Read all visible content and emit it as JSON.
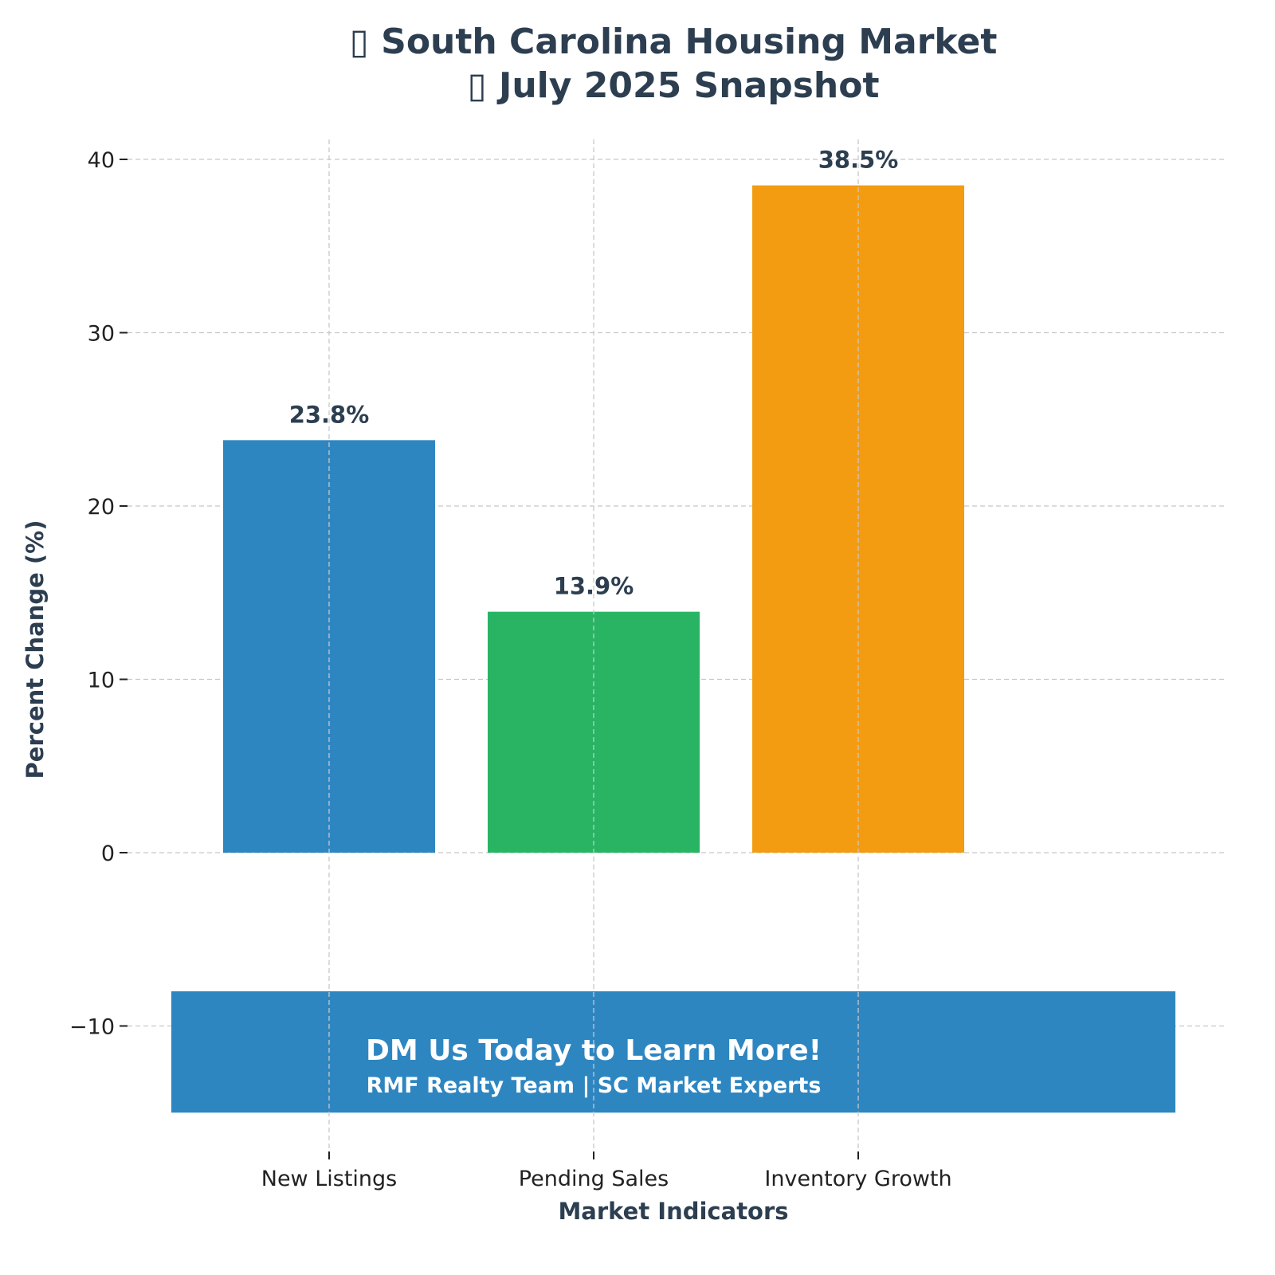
{
  "chart_data": {
    "type": "bar",
    "title_lines": [
      "▯ South Carolina Housing Market",
      "▯ July 2025 Snapshot"
    ],
    "xlabel": "Market Indicators",
    "ylabel": "Percent Change (%)",
    "categories": [
      "New Listings",
      "Pending Sales",
      "Inventory Growth"
    ],
    "values": [
      23.8,
      13.9,
      38.5
    ],
    "data_labels": [
      "23.8%",
      "13.9%",
      "38.5%"
    ],
    "colors": [
      "#2e86c1",
      "#28b463",
      "#f39c12"
    ],
    "ylim": [
      -17.2,
      41.2
    ],
    "yticks": [
      -10,
      0,
      10,
      20,
      30,
      40
    ],
    "ytick_labels": [
      "−10",
      "0",
      "10",
      "20",
      "30",
      "40"
    ],
    "grid": true,
    "banner": {
      "headline": "DM Us Today to Learn More!",
      "subline": "RMF Realty Team | SC Market Experts",
      "color": "#2e86c1",
      "y_range": [
        -15,
        -8
      ]
    }
  }
}
